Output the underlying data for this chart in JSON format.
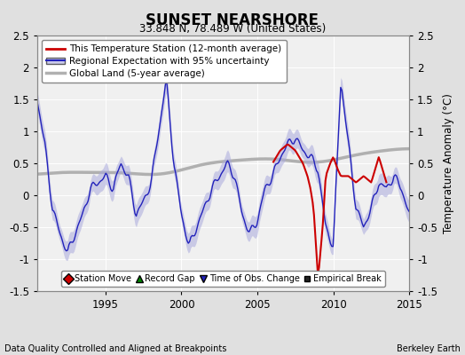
{
  "title": "SUNSET NEARSHORE",
  "subtitle": "33.848 N, 78.489 W (United States)",
  "ylabel": "Temperature Anomaly (°C)",
  "footer_left": "Data Quality Controlled and Aligned at Breakpoints",
  "footer_right": "Berkeley Earth",
  "xlim": [
    1990.5,
    2015.0
  ],
  "ylim": [
    -1.5,
    2.5
  ],
  "yticks": [
    -1.5,
    -1.0,
    -0.5,
    0.0,
    0.5,
    1.0,
    1.5,
    2.0,
    2.5
  ],
  "xticks": [
    1995,
    2000,
    2005,
    2010,
    2015
  ],
  "legend_entries": [
    {
      "label": "This Temperature Station (12-month average)",
      "color": "#cc0000",
      "lw": 2
    },
    {
      "label": "Regional Expectation with 95% uncertainty",
      "color": "#3333cc",
      "lw": 1.5
    },
    {
      "label": "Global Land (5-year average)",
      "color": "#b0b0b0",
      "lw": 2.5
    }
  ],
  "bg_color": "#e0e0e0",
  "plot_bg_color": "#f0f0f0",
  "grid_color": "#ffffff",
  "band_color": "#aaaadd",
  "station_color": "#cc0000",
  "regional_color": "#2222bb",
  "global_color": "#b0b0b0",
  "legend_items_bottom": [
    {
      "label": "Station Move",
      "marker": "D",
      "color": "#cc0000"
    },
    {
      "label": "Record Gap",
      "marker": "^",
      "color": "#008800"
    },
    {
      "label": "Time of Obs. Change",
      "marker": "v",
      "color": "#2222bb"
    },
    {
      "label": "Empirical Break",
      "marker": "s",
      "color": "#222222"
    }
  ]
}
